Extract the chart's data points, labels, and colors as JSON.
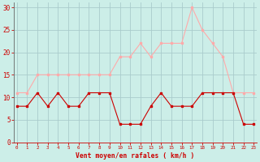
{
  "x": [
    0,
    1,
    2,
    3,
    4,
    5,
    6,
    7,
    8,
    9,
    10,
    11,
    12,
    13,
    14,
    15,
    16,
    17,
    18,
    19,
    20,
    21,
    22,
    23
  ],
  "mean_wind": [
    8,
    8,
    11,
    8,
    11,
    8,
    8,
    11,
    11,
    11,
    4,
    4,
    4,
    8,
    11,
    8,
    8,
    8,
    11,
    11,
    11,
    11,
    4,
    4
  ],
  "gusts": [
    11,
    11,
    15,
    15,
    15,
    15,
    15,
    15,
    15,
    15,
    19,
    19,
    22,
    19,
    22,
    22,
    22,
    30,
    25,
    22,
    19,
    11,
    11,
    11
  ],
  "mean_color": "#cc0000",
  "gust_color": "#ffaaaa",
  "bg_color": "#cceee8",
  "grid_color": "#aacccc",
  "xlabel": "Vent moyen/en rafales ( km/h )",
  "xlabel_color": "#cc0000",
  "tick_color": "#cc0000",
  "ylim": [
    0,
    31
  ],
  "yticks": [
    0,
    5,
    10,
    15,
    20,
    25,
    30
  ],
  "xlim": [
    -0.3,
    23.3
  ]
}
